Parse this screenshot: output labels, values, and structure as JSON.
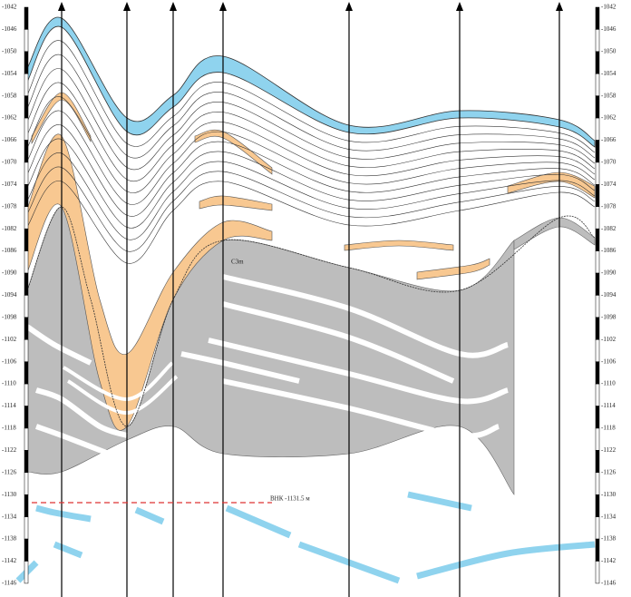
{
  "depth_scale": {
    "ticks": [
      "-1042",
      "-1046",
      "-1050",
      "-1054",
      "-1058",
      "-1062",
      "-1066",
      "-1070",
      "-1074",
      "-1078",
      "-1082",
      "-1086",
      "-1090",
      "-1094",
      "-1098",
      "-1102",
      "-1106",
      "-1110",
      "-1114",
      "-1118",
      "-1122",
      "-1126",
      "-1130",
      "-1134",
      "-1138",
      "-1142",
      "-1146"
    ]
  },
  "annotations": {
    "formation": "C3m",
    "contact": "ВНК -1131.5 м"
  }
}
